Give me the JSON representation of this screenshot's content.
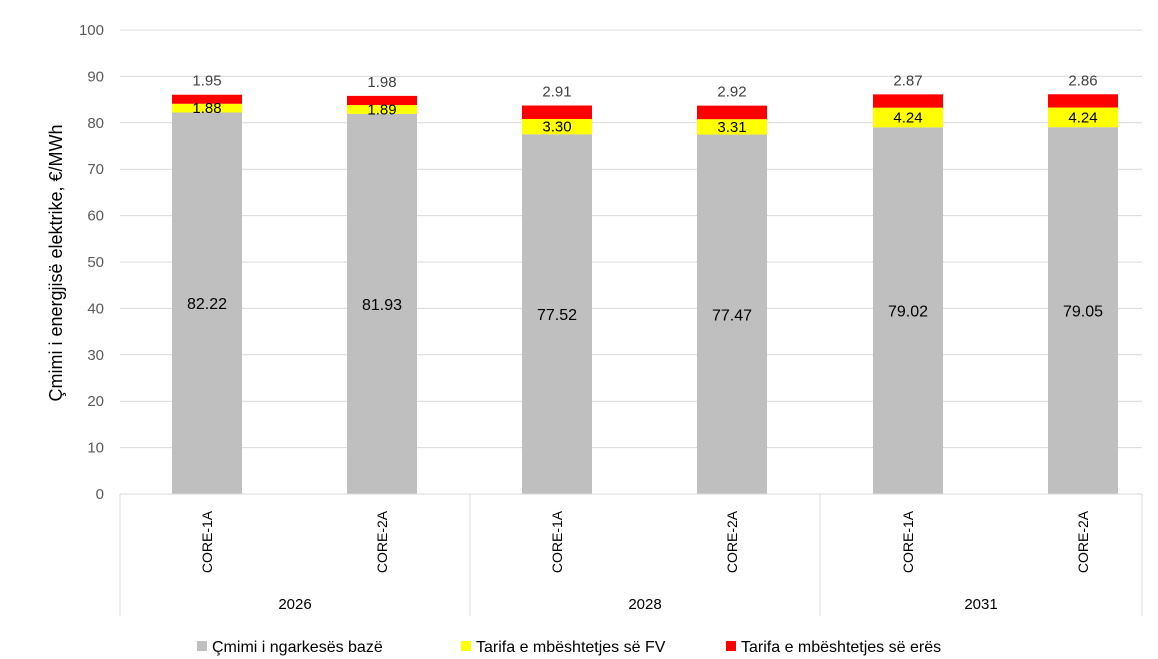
{
  "chart_data": {
    "type": "bar",
    "stacked": true,
    "ylabel": "Çmimi i energjisë elektrike, €/MWh",
    "ylim": [
      0,
      100
    ],
    "yticks": [
      0,
      10,
      20,
      30,
      40,
      50,
      60,
      70,
      80,
      90,
      100
    ],
    "grid": true,
    "legend_position": "bottom",
    "groups": [
      {
        "label": "2026",
        "categories": [
          "CORE-1A",
          "CORE-2A"
        ]
      },
      {
        "label": "2028",
        "categories": [
          "CORE-1A",
          "CORE-2A"
        ]
      },
      {
        "label": "2031",
        "categories": [
          "CORE-1A",
          "CORE-2A"
        ]
      }
    ],
    "series": [
      {
        "name": "Çmimi i ngarkesës bazë",
        "color": "#bfbfbf",
        "values": [
          82.22,
          81.93,
          77.52,
          77.47,
          79.02,
          79.05
        ],
        "labels": [
          "82.22",
          "81.93",
          "77.52",
          "77.47",
          "79.02",
          "79.05"
        ]
      },
      {
        "name": "Tarifa e mbështetjes së FV",
        "color": "#ffff00",
        "values": [
          1.88,
          1.89,
          3.3,
          3.31,
          4.24,
          4.24
        ],
        "labels": [
          "1.88",
          "1.89",
          "3.30",
          "3.31",
          "4.24",
          "4.24"
        ]
      },
      {
        "name": "Tarifa e mbështetjes së erës",
        "color": "#ff0000",
        "values": [
          1.95,
          1.98,
          2.91,
          2.92,
          2.87,
          2.86
        ],
        "labels": [
          "1.95",
          "1.98",
          "2.91",
          "2.92",
          "2.87",
          "2.86"
        ]
      }
    ]
  }
}
